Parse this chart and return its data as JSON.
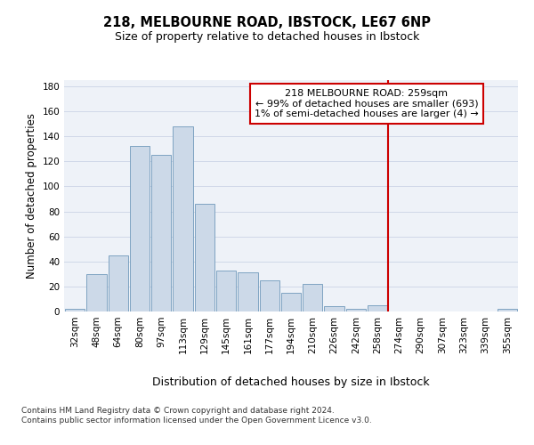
{
  "title": "218, MELBOURNE ROAD, IBSTOCK, LE67 6NP",
  "subtitle": "Size of property relative to detached houses in Ibstock",
  "xlabel": "Distribution of detached houses by size in Ibstock",
  "ylabel": "Number of detached properties",
  "categories": [
    "32sqm",
    "48sqm",
    "64sqm",
    "80sqm",
    "97sqm",
    "113sqm",
    "129sqm",
    "145sqm",
    "161sqm",
    "177sqm",
    "194sqm",
    "210sqm",
    "226sqm",
    "242sqm",
    "258sqm",
    "274sqm",
    "290sqm",
    "307sqm",
    "323sqm",
    "339sqm",
    "355sqm"
  ],
  "values": [
    2,
    30,
    45,
    132,
    125,
    148,
    86,
    33,
    31,
    25,
    15,
    22,
    4,
    2,
    5,
    0,
    0,
    0,
    0,
    0,
    2
  ],
  "bar_color": "#ccd9e8",
  "bar_edge_color": "#7099bb",
  "background_color": "#eef2f8",
  "grid_color": "#d0d8e8",
  "vline_x": 14.5,
  "vline_color": "#cc0000",
  "annotation_text": "218 MELBOURNE ROAD: 259sqm\n← 99% of detached houses are smaller (693)\n1% of semi-detached houses are larger (4) →",
  "annotation_box_color": "#ffffff",
  "annotation_border_color": "#cc0000",
  "ylim": [
    0,
    185
  ],
  "yticks": [
    0,
    20,
    40,
    60,
    80,
    100,
    120,
    140,
    160,
    180
  ],
  "footer": "Contains HM Land Registry data © Crown copyright and database right 2024.\nContains public sector information licensed under the Open Government Licence v3.0.",
  "title_fontsize": 10.5,
  "subtitle_fontsize": 9,
  "xlabel_fontsize": 9,
  "ylabel_fontsize": 8.5,
  "tick_fontsize": 7.5,
  "annotation_fontsize": 8,
  "footer_fontsize": 6.5
}
